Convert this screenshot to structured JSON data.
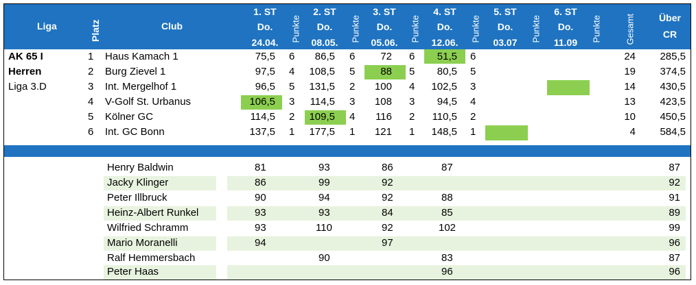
{
  "header": {
    "liga": "Liga",
    "platz": "Platz",
    "club": "Club",
    "rounds": [
      {
        "st": "1. ST",
        "day": "Do.",
        "date": "24.04."
      },
      {
        "st": "2. ST",
        "day": "Do.",
        "date": "08.05."
      },
      {
        "st": "3. ST",
        "day": "Do.",
        "date": "05.06."
      },
      {
        "st": "4. ST",
        "day": "Do.",
        "date": "12.06."
      },
      {
        "st": "5. ST",
        "day": "Do.",
        "date": "03.07"
      },
      {
        "st": "6. ST",
        "day": "Do.",
        "date": "11.09"
      }
    ],
    "punkte": "Punkte",
    "gesamt": "Gesamt",
    "ueber1": "Über",
    "ueber2": "CR"
  },
  "liga": {
    "line1": "AK 65 I",
    "line2": "Herren",
    "line3": "Liga 3.D"
  },
  "standings": [
    {
      "platz": "1",
      "club": "Haus Kamach 1",
      "r1": "75,5",
      "p1": "6",
      "r2": "86,5",
      "p2": "6",
      "r3": "72",
      "p3": "6",
      "r4": "51,5",
      "p4": "6",
      "gesamt": "24",
      "ueber": "285,5"
    },
    {
      "platz": "2",
      "club": "Burg Zievel 1",
      "r1": "97,5",
      "p1": "4",
      "r2": "108,5",
      "p2": "5",
      "r3": "88",
      "p3": "5",
      "r4": "80,5",
      "p4": "5",
      "gesamt": "19",
      "ueber": "374,5"
    },
    {
      "platz": "3",
      "club": "Int. Mergelhof 1",
      "r1": "96,5",
      "p1": "5",
      "r2": "131,5",
      "p2": "2",
      "r3": "100",
      "p3": "4",
      "r4": "102,5",
      "p4": "3",
      "gesamt": "14",
      "ueber": "430,5"
    },
    {
      "platz": "4",
      "club": "V-Golf St. Urbanus",
      "r1": "106,5",
      "p1": "3",
      "r2": "114,5",
      "p2": "3",
      "r3": "108",
      "p3": "3",
      "r4": "94,5",
      "p4": "4",
      "gesamt": "13",
      "ueber": "423,5"
    },
    {
      "platz": "5",
      "club": "Kölner GC",
      "r1": "114,5",
      "p1": "2",
      "r2": "109,5",
      "p2": "4",
      "r3": "116",
      "p3": "2",
      "r4": "110,5",
      "p4": "2",
      "gesamt": "10",
      "ueber": "450,5"
    },
    {
      "platz": "6",
      "club": "Int. GC Bonn",
      "r1": "137,5",
      "p1": "1",
      "r2": "177,5",
      "p2": "1",
      "r3": "121",
      "p3": "1",
      "r4": "148,5",
      "p4": "1",
      "gesamt": "4",
      "ueber": "584,5"
    }
  ],
  "players": [
    {
      "name": "Henry Baldwin",
      "r1": "81",
      "r2": "93",
      "r3": "86",
      "r4": "87",
      "ueber": "87"
    },
    {
      "name": "Jacky Klinger",
      "r1": "86",
      "r2": "99",
      "r3": "92",
      "r4": "",
      "ueber": "92"
    },
    {
      "name": "Peter Illbruck",
      "r1": "90",
      "r2": "94",
      "r3": "92",
      "r4": "88",
      "ueber": "91"
    },
    {
      "name": "Heinz-Albert Runkel",
      "r1": "93",
      "r2": "93",
      "r3": "84",
      "r4": "85",
      "ueber": "89"
    },
    {
      "name": "Wilfried Schramm",
      "r1": "93",
      "r2": "110",
      "r3": "92",
      "r4": "102",
      "ueber": "99"
    },
    {
      "name": "Mario Moranelli",
      "r1": "94",
      "r2": "",
      "r3": "97",
      "r4": "",
      "ueber": "96"
    },
    {
      "name": "Ralf Hemmersbach",
      "r1": "",
      "r2": "90",
      "r3": "",
      "r4": "83",
      "ueber": "87"
    },
    {
      "name": "Peter Haas",
      "r1": "",
      "r2": "",
      "r3": "",
      "r4": "96",
      "ueber": "96"
    }
  ],
  "colors": {
    "header_blue": "#1f73c1",
    "highlight_green": "#8ccf50",
    "stripe_green": "#e8f3df"
  }
}
